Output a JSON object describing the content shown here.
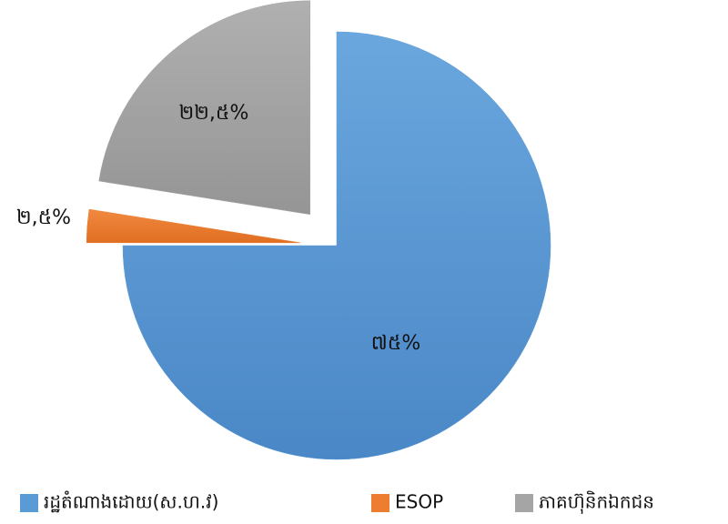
{
  "chart_data": {
    "type": "pie",
    "categories": [
      "រដ្ឋតំណាងដោយ(ស.ហ.វ)",
      "ESOP",
      "ភាគហ៊ុនិកឯកជន"
    ],
    "values": [
      75,
      2.5,
      22.5
    ],
    "value_labels": [
      "៧៥%",
      "២,៥%",
      "២២,៥%"
    ],
    "colors": [
      "#5b9bd5",
      "#ed7d31",
      "#a5a5a5"
    ],
    "legend": "bottom"
  }
}
